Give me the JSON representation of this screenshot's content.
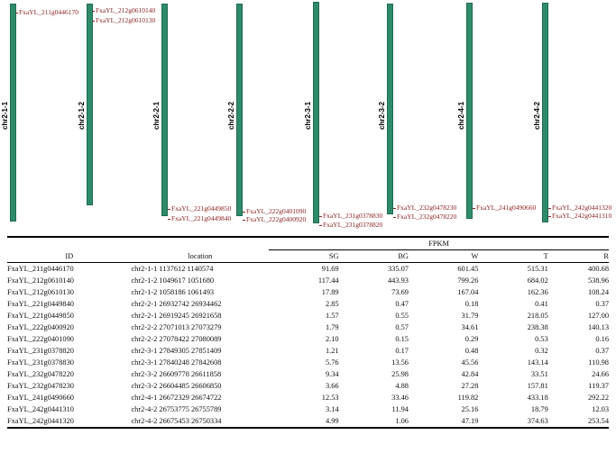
{
  "chromosomes": [
    {
      "name": "chr2-1-1"
    },
    {
      "name": "chr2-1-2"
    },
    {
      "name": "chr2-2-1"
    },
    {
      "name": "chr2-2-2"
    },
    {
      "name": "chr2-3-1"
    },
    {
      "name": "chr2-3-2"
    },
    {
      "name": "chr2-4-1"
    },
    {
      "name": "chr2-4-2"
    }
  ],
  "gene_labels": [
    "FxaYL_211g0446170",
    "FxaYL_212g0610140",
    "FxaYL_212g0610130",
    "FxaYL_221g0449850",
    "FxaYL_221g0449840",
    "FxaYL_222g0401090",
    "FxaYL_222g0400920",
    "FxaYL_231g0378830",
    "FxaYL_231g0378820",
    "FxaYL_232g0478230",
    "FxaYL_232g0478220",
    "FxaYL_241g0490660",
    "FxaYL_242g0441320",
    "FxaYL_242g0441310"
  ],
  "table": {
    "group_header": "FPKM",
    "headers": [
      "ID",
      "location",
      "SG",
      "BG",
      "W",
      "T",
      "R"
    ],
    "rows": [
      [
        "FxaYL_211g0446170",
        "chr2-1-1 1137612 1140574",
        "91.69",
        "335.07",
        "601.45",
        "515.31",
        "400.68"
      ],
      [
        "FxaYL_212g0610140",
        "chr2-1-2 1049617 1051680",
        "117.44",
        "443.93",
        "799.26",
        "684.02",
        "538.96"
      ],
      [
        "FxaYL_212g0610130",
        "chr2-1-2 1058186 1061493",
        "17.89",
        "73.69",
        "167.04",
        "162.36",
        "108.24"
      ],
      [
        "FxaYL_221g0449840",
        "chr2-2-1 26932742 26934462",
        "2.85",
        "0.47",
        "0.18",
        "0.41",
        "0.37"
      ],
      [
        "FxaYL_221g0449850",
        "chr2-2-1 26919245 26921658",
        "1.57",
        "0.55",
        "31.79",
        "218.05",
        "127.00"
      ],
      [
        "FxaYL_222g0400920",
        "chr2-2-2 27071013 27073279",
        "1.79",
        "0.57",
        "34.61",
        "238.38",
        "140.13"
      ],
      [
        "FxaYL_222g0401090",
        "chr2-2-2 27078422 27080089",
        "2.10",
        "0.15",
        "0.29",
        "0.53",
        "0.16"
      ],
      [
        "FxaYL_231g0378820",
        "chr2-3-1 27849305 27851409",
        "1.21",
        "0.17",
        "0.48",
        "0.32",
        "0.37"
      ],
      [
        "FxaYL_231g0378830",
        "chr2-3-1 27840248 27842608",
        "5.76",
        "13.56",
        "45.56",
        "143.14",
        "110.98"
      ],
      [
        "FxaYL_232g0478220",
        "chr2-3-2 26609778 26611858",
        "9.34",
        "25.98",
        "42.84",
        "33.51",
        "24.66"
      ],
      [
        "FxaYL_232g0478230",
        "chr2-3-2 26604485 26606850",
        "3.66",
        "4.88",
        "27.28",
        "157.81",
        "119.37"
      ],
      [
        "FxaYL_241g0490660",
        "chr2-4-1 26672329 26674722",
        "12.53",
        "33.46",
        "119.82",
        "433.18",
        "292.22"
      ],
      [
        "FxaYL_242g0441310",
        "chr2-4-2 26753775 26755789",
        "3.14",
        "11.94",
        "25.16",
        "18.79",
        "12.03"
      ],
      [
        "FxaYL_242g0441320",
        "chr2-4-2 26675453 26750334",
        "4.99",
        "1.06",
        "47.19",
        "374.63",
        "253.54"
      ]
    ]
  }
}
